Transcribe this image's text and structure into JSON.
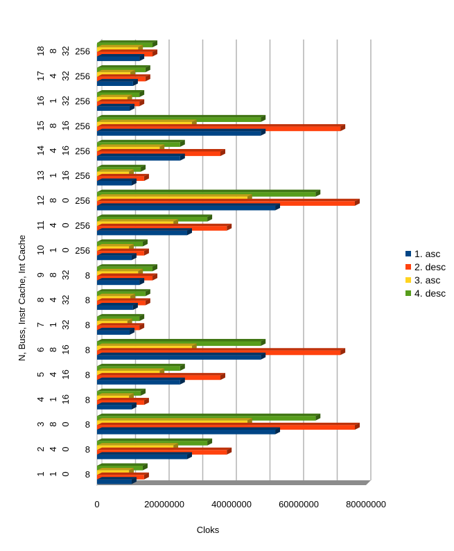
{
  "chart_data": {
    "type": "bar",
    "orientation": "horizontal",
    "style": "3d",
    "title": "",
    "xlabel": "Cloks",
    "ylabel": "N, Buss, Instr Cache, Int Cache",
    "xlim": [
      0,
      80000000
    ],
    "xticks": [
      "0",
      "20000000",
      "40000000",
      "60000000",
      "80000000"
    ],
    "grid": true,
    "legend_position": "right",
    "categories": [
      [
        "1",
        "1",
        "0",
        "8"
      ],
      [
        "2",
        "4",
        "0",
        "8"
      ],
      [
        "3",
        "8",
        "0",
        "8"
      ],
      [
        "4",
        "1",
        "16",
        "8"
      ],
      [
        "5",
        "4",
        "16",
        "8"
      ],
      [
        "6",
        "8",
        "16",
        "8"
      ],
      [
        "7",
        "1",
        "32",
        "8"
      ],
      [
        "8",
        "4",
        "32",
        "8"
      ],
      [
        "9",
        "8",
        "32",
        "8"
      ],
      [
        "10",
        "1",
        "0",
        "256"
      ],
      [
        "11",
        "4",
        "0",
        "256"
      ],
      [
        "12",
        "8",
        "0",
        "256"
      ],
      [
        "13",
        "1",
        "16",
        "256"
      ],
      [
        "14",
        "4",
        "16",
        "256"
      ],
      [
        "15",
        "8",
        "16",
        "256"
      ],
      [
        "16",
        "1",
        "32",
        "256"
      ],
      [
        "17",
        "4",
        "32",
        "256"
      ],
      [
        "18",
        "8",
        "32",
        "256"
      ]
    ],
    "series": [
      {
        "name": "1. asc",
        "color": "#004586",
        "values": [
          10300000,
          26800000,
          53000000,
          10300000,
          24700000,
          48700000,
          9700000,
          10700000,
          12600000,
          10300000,
          26800000,
          53000000,
          10300000,
          24700000,
          48700000,
          9700000,
          10700000,
          12600000
        ]
      },
      {
        "name": "2. desc",
        "color": "#ff420e",
        "values": [
          14000000,
          38600000,
          76700000,
          14000000,
          36700000,
          72400000,
          12600000,
          14400000,
          16500000,
          14000000,
          38600000,
          76700000,
          14000000,
          36700000,
          72400000,
          12600000,
          14400000,
          16500000
        ]
      },
      {
        "name": "3. asc",
        "color": "#ffd320",
        "values": [
          9500000,
          22700000,
          44700000,
          9500000,
          18600000,
          28200000,
          9000000,
          9900000,
          12200000,
          9500000,
          22700000,
          44700000,
          9500000,
          18600000,
          28200000,
          9000000,
          9900000,
          12200000
        ]
      },
      {
        "name": "4. desc",
        "color": "#579d1c",
        "values": [
          13600000,
          32800000,
          65000000,
          13000000,
          24700000,
          48700000,
          12600000,
          14400000,
          16500000,
          13600000,
          32800000,
          65000000,
          13000000,
          24700000,
          48700000,
          12600000,
          14400000,
          16500000
        ]
      }
    ]
  }
}
